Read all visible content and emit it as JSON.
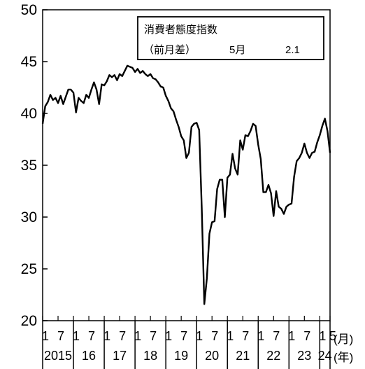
{
  "chart_data": {
    "type": "line",
    "ylim": [
      20,
      50
    ],
    "yticks": [
      20,
      25,
      30,
      35,
      40,
      45,
      50
    ],
    "month_tick_labels": [
      "1",
      "7",
      "1",
      "7",
      "1",
      "7",
      "1",
      "7",
      "1",
      "7",
      "1",
      "7",
      "1",
      "7",
      "1",
      "7",
      "1",
      "7",
      "1",
      "5"
    ],
    "year_labels": [
      "2015",
      "16",
      "17",
      "18",
      "19",
      "20",
      "21",
      "22",
      "23",
      "24"
    ],
    "x_unit_month": "(月)",
    "x_unit_year": "(年)",
    "legend": {
      "series_name": "消費者態度指数",
      "diff_label": "（前月差）",
      "diff_month": "5月",
      "diff_value": "2.1"
    },
    "start": "2015-01",
    "end": "2024-05",
    "series": [
      {
        "name": "消費者態度指数",
        "color": "#000000",
        "values": [
          39.0,
          40.7,
          41.1,
          41.8,
          41.3,
          41.5,
          41.0,
          41.7,
          40.9,
          41.6,
          42.3,
          42.3,
          42.0,
          40.1,
          41.5,
          41.2,
          41.0,
          41.8,
          41.5,
          42.3,
          43.0,
          42.3,
          40.9,
          42.8,
          42.7,
          43.1,
          43.7,
          43.5,
          43.7,
          43.2,
          43.8,
          43.6,
          44.1,
          44.6,
          44.5,
          44.4,
          44.0,
          44.3,
          43.9,
          44.1,
          43.8,
          43.6,
          43.8,
          43.4,
          43.3,
          43.0,
          42.6,
          42.5,
          41.7,
          41.2,
          40.5,
          40.2,
          39.4,
          38.7,
          37.8,
          37.4,
          35.7,
          36.2,
          38.7,
          39.0,
          39.1,
          38.4,
          30.9,
          21.6,
          24.1,
          28.4,
          29.5,
          29.6,
          32.7,
          33.6,
          33.6,
          30.0,
          33.8,
          34.1,
          36.1,
          34.7,
          34.1,
          37.4,
          36.5,
          37.9,
          37.8,
          38.3,
          39.0,
          38.8,
          37.0,
          35.6,
          32.4,
          32.4,
          33.1,
          32.3,
          30.1,
          32.5,
          31.0,
          30.8,
          30.3,
          31.0,
          31.2,
          31.3,
          33.9,
          35.4,
          35.7,
          36.2,
          37.1,
          36.2,
          35.7,
          36.2,
          36.3,
          37.2,
          37.9,
          38.8,
          39.5,
          38.3,
          36.2
        ]
      }
    ]
  }
}
